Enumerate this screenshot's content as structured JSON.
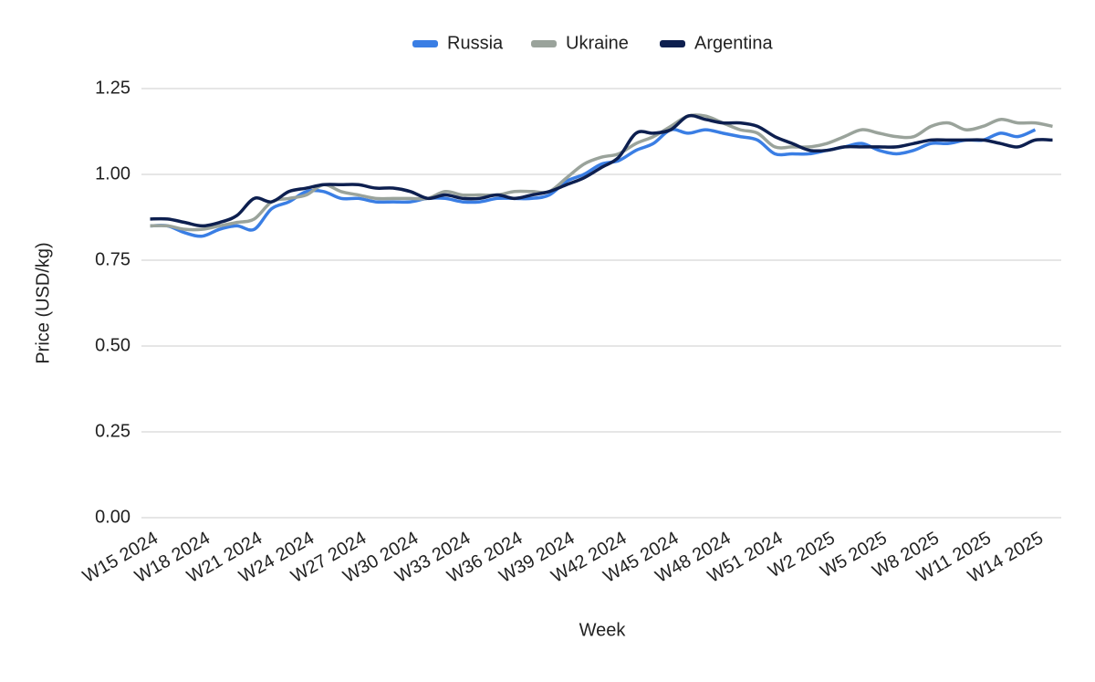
{
  "chart_data": {
    "type": "line",
    "x_label": "Week",
    "y_label": "Price (USD/kg)",
    "categories": [
      "W15 2024",
      null,
      null,
      "W18 2024",
      null,
      null,
      "W21 2024",
      null,
      null,
      "W24 2024",
      null,
      null,
      "W27 2024",
      null,
      null,
      "W30 2024",
      null,
      null,
      "W33 2024",
      null,
      null,
      "W36 2024",
      null,
      null,
      "W39 2024",
      null,
      null,
      "W42 2024",
      null,
      null,
      "W45 2024",
      null,
      null,
      "W48 2024",
      null,
      null,
      "W51 2024",
      null,
      null,
      "W2 2025",
      null,
      null,
      "W5 2025",
      null,
      null,
      "W8 2025",
      null,
      null,
      "W11 2025",
      null,
      null,
      "W14 2025",
      null
    ],
    "series": [
      {
        "name": "Russia",
        "color": "#3a7ee4",
        "values": [
          0.85,
          0.85,
          0.83,
          0.82,
          0.84,
          0.85,
          0.84,
          0.9,
          0.92,
          0.95,
          0.95,
          0.93,
          0.93,
          0.92,
          0.92,
          0.92,
          0.93,
          0.93,
          0.92,
          0.92,
          0.93,
          0.93,
          0.93,
          0.94,
          0.98,
          1.0,
          1.03,
          1.04,
          1.07,
          1.09,
          1.13,
          1.12,
          1.13,
          1.12,
          1.11,
          1.1,
          1.06,
          1.06,
          1.06,
          1.07,
          1.08,
          1.09,
          1.07,
          1.06,
          1.07,
          1.09,
          1.09,
          1.1,
          1.1,
          1.12,
          1.11,
          1.13,
          null
        ]
      },
      {
        "name": "Ukraine",
        "color": "#9aa39b",
        "values": [
          0.85,
          0.85,
          0.84,
          0.84,
          0.85,
          0.86,
          0.87,
          0.92,
          0.93,
          0.94,
          0.97,
          0.95,
          0.94,
          0.93,
          0.93,
          0.93,
          0.93,
          0.95,
          0.94,
          0.94,
          0.94,
          0.95,
          0.95,
          0.95,
          0.99,
          1.03,
          1.05,
          1.06,
          1.09,
          1.11,
          1.14,
          1.17,
          1.17,
          1.15,
          1.13,
          1.12,
          1.08,
          1.08,
          1.08,
          1.09,
          1.11,
          1.13,
          1.12,
          1.11,
          1.11,
          1.14,
          1.15,
          1.13,
          1.14,
          1.16,
          1.15,
          1.15,
          1.14
        ]
      },
      {
        "name": "Argentina",
        "color": "#0d1f4f",
        "values": [
          0.87,
          0.87,
          0.86,
          0.85,
          0.86,
          0.88,
          0.93,
          0.92,
          0.95,
          0.96,
          0.97,
          0.97,
          0.97,
          0.96,
          0.96,
          0.95,
          0.93,
          0.94,
          0.93,
          0.93,
          0.94,
          0.93,
          0.94,
          0.95,
          0.97,
          0.99,
          1.02,
          1.05,
          1.12,
          1.12,
          1.13,
          1.17,
          1.16,
          1.15,
          1.15,
          1.14,
          1.11,
          1.09,
          1.07,
          1.07,
          1.08,
          1.08,
          1.08,
          1.08,
          1.09,
          1.1,
          1.1,
          1.1,
          1.1,
          1.09,
          1.08,
          1.1,
          1.1
        ]
      }
    ],
    "ylim": [
      0,
      1.25
    ],
    "yticks": [
      {
        "value": 0,
        "label": "0.00"
      },
      {
        "value": 0.25,
        "label": "0.25"
      },
      {
        "value": 0.5,
        "label": "0.50"
      },
      {
        "value": 0.75,
        "label": "0.75"
      },
      {
        "value": 1,
        "label": "1.00"
      },
      {
        "value": 1.25,
        "label": "1.25"
      }
    ],
    "grid": true,
    "legend": "top"
  }
}
